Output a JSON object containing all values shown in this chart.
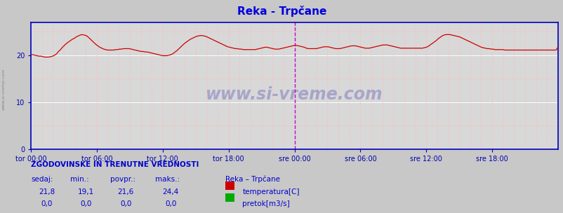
{
  "title": "Reka - Trpčane",
  "title_color": "#0000dd",
  "bg_color": "#c8c8c8",
  "plot_bg_color": "#d8d8d8",
  "line_color": "#cc0000",
  "axis_color": "#0000bb",
  "tick_color": "#0000aa",
  "ylim": [
    0,
    27
  ],
  "yticks": [
    0,
    10,
    20
  ],
  "x_labels": [
    "tor 00:00",
    "tor 06:00",
    "tor 12:00",
    "tor 18:00",
    "sre 00:00",
    "sre 06:00",
    "sre 12:00",
    "sre 18:00"
  ],
  "vline_mid_color": "#cc00cc",
  "vline_end_color": "#cc00cc",
  "grid_major_color": "#ffffff",
  "grid_minor_color": "#ffbbbb",
  "watermark": "www.si-vreme.com",
  "watermark_color": "#3333aa",
  "watermark_alpha": 0.3,
  "left_label": "www.si-vreme.com",
  "left_label_color": "#888888",
  "footer_title": "ZGODOVINSKE IN TRENUTNE VREDNOSTI",
  "footer_color": "#0000cc",
  "col_headers": [
    "sedaj:",
    "min.:",
    "povpr.:",
    "maks.:"
  ],
  "col_values_temp": [
    "21,8",
    "19,1",
    "21,6",
    "24,4"
  ],
  "col_values_flow": [
    "0,0",
    "0,0",
    "0,0",
    "0,0"
  ],
  "station_name": "Reka – Trpčane",
  "legend1_label": "temperatura[C]",
  "legend1_color": "#cc0000",
  "legend2_label": "pretok[m3/s]",
  "legend2_color": "#00aa00",
  "temp_data": [
    20.1,
    20.1,
    20.0,
    19.9,
    19.8,
    19.8,
    19.7,
    19.6,
    19.6,
    19.6,
    19.7,
    19.8,
    20.0,
    20.3,
    20.8,
    21.2,
    21.7,
    22.1,
    22.5,
    22.8,
    23.1,
    23.4,
    23.6,
    23.9,
    24.1,
    24.3,
    24.4,
    24.3,
    24.2,
    23.9,
    23.5,
    23.1,
    22.7,
    22.3,
    22.0,
    21.7,
    21.5,
    21.3,
    21.2,
    21.1,
    21.1,
    21.1,
    21.1,
    21.2,
    21.2,
    21.3,
    21.3,
    21.4,
    21.4,
    21.4,
    21.4,
    21.3,
    21.2,
    21.1,
    21.0,
    20.9,
    20.8,
    20.8,
    20.7,
    20.7,
    20.6,
    20.5,
    20.4,
    20.3,
    20.2,
    20.1,
    20.0,
    19.9,
    19.9,
    19.9,
    20.0,
    20.1,
    20.3,
    20.6,
    20.9,
    21.3,
    21.7,
    22.1,
    22.5,
    22.8,
    23.1,
    23.4,
    23.6,
    23.8,
    24.0,
    24.1,
    24.2,
    24.2,
    24.1,
    24.0,
    23.8,
    23.6,
    23.4,
    23.2,
    23.0,
    22.8,
    22.6,
    22.4,
    22.2,
    22.0,
    21.8,
    21.7,
    21.6,
    21.5,
    21.4,
    21.4,
    21.3,
    21.3,
    21.2,
    21.2,
    21.2,
    21.2,
    21.2,
    21.2,
    21.2,
    21.3,
    21.4,
    21.5,
    21.6,
    21.7,
    21.7,
    21.6,
    21.5,
    21.4,
    21.3,
    21.3,
    21.3,
    21.4,
    21.5,
    21.6,
    21.7,
    21.8,
    21.9,
    22.0,
    22.1,
    22.1,
    22.0,
    21.9,
    21.8,
    21.7,
    21.5,
    21.4,
    21.4,
    21.4,
    21.4,
    21.4,
    21.5,
    21.6,
    21.7,
    21.8,
    21.8,
    21.8,
    21.7,
    21.6,
    21.5,
    21.4,
    21.4,
    21.4,
    21.5,
    21.6,
    21.7,
    21.8,
    21.9,
    22.0,
    22.0,
    22.0,
    21.9,
    21.8,
    21.7,
    21.6,
    21.5,
    21.5,
    21.5,
    21.6,
    21.7,
    21.8,
    21.9,
    22.0,
    22.1,
    22.2,
    22.2,
    22.2,
    22.1,
    22.0,
    21.9,
    21.8,
    21.7,
    21.6,
    21.5,
    21.5,
    21.5,
    21.5,
    21.5,
    21.5,
    21.5,
    21.5,
    21.5,
    21.5,
    21.5,
    21.5,
    21.6,
    21.7,
    21.9,
    22.2,
    22.5,
    22.8,
    23.1,
    23.5,
    23.8,
    24.1,
    24.3,
    24.4,
    24.4,
    24.4,
    24.3,
    24.2,
    24.1,
    24.0,
    23.9,
    23.7,
    23.5,
    23.3,
    23.1,
    22.9,
    22.7,
    22.5,
    22.3,
    22.1,
    21.9,
    21.7,
    21.6,
    21.5,
    21.4,
    21.4,
    21.3,
    21.3,
    21.2,
    21.2,
    21.2,
    21.2,
    21.2,
    21.1,
    21.1,
    21.1,
    21.1,
    21.1,
    21.1,
    21.1,
    21.1,
    21.1,
    21.1,
    21.1,
    21.1,
    21.1,
    21.1,
    21.1,
    21.1,
    21.1,
    21.1,
    21.1,
    21.1,
    21.1,
    21.1,
    21.1,
    21.1,
    21.1,
    21.1,
    21.1,
    21.8
  ]
}
